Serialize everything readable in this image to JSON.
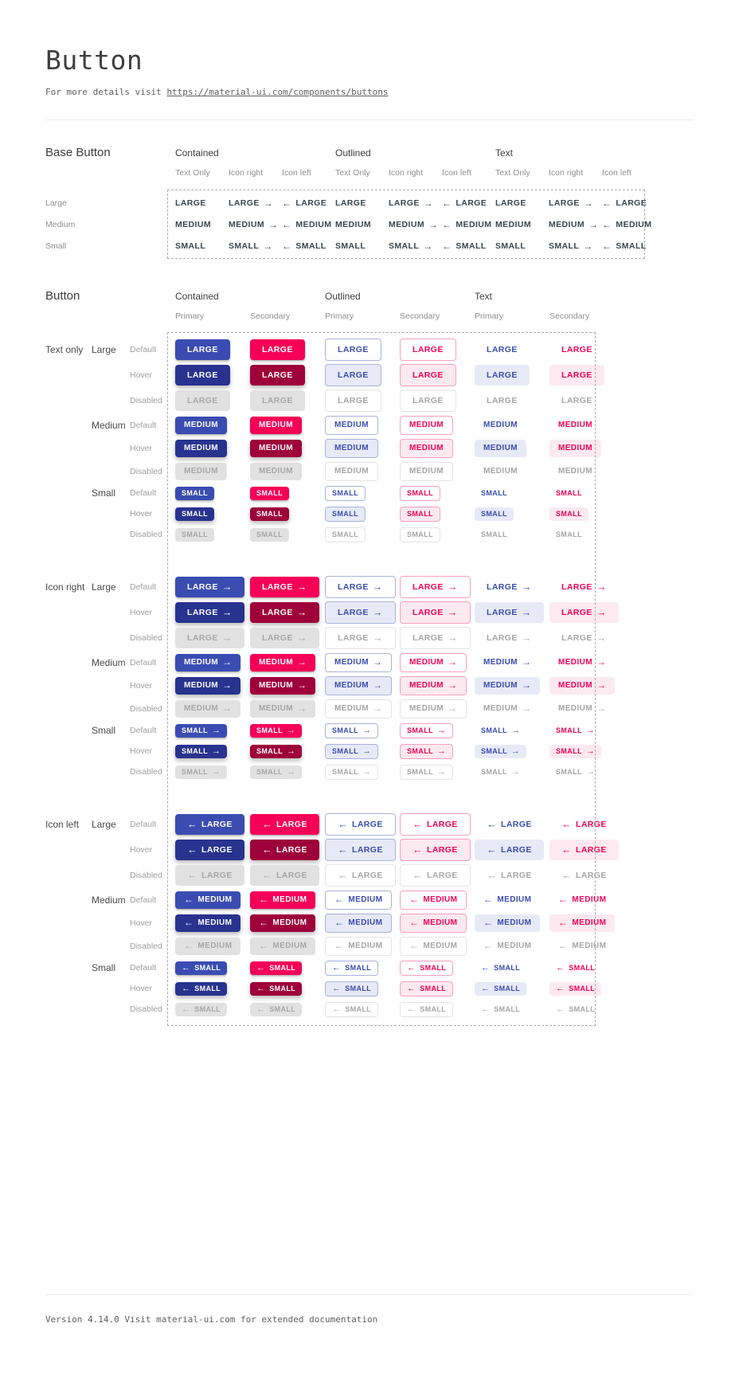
{
  "header": {
    "title": "Button",
    "subtitle_prefix": "For more details visit ",
    "subtitle_link": "https://material-ui.com/components/buttons"
  },
  "colors": {
    "primary": "#3a4cb2",
    "primary_hover": "#27338f",
    "secondary": "#f50057",
    "secondary_hover": "#9e0039",
    "primary_light_bg": "#e7eaf6",
    "secondary_light_bg": "#fde9f0",
    "disabled_bg": "#e1e1e1",
    "disabled_text": "#a6a6a6",
    "outlined_primary_border": "#aab2dd",
    "outlined_secondary_border": "#f8a0bf",
    "outlined_disabled_border": "#e4e4e4",
    "base_text": "#37474f"
  },
  "icons": {
    "arrow_right": "→",
    "arrow_left": "←"
  },
  "base_section": {
    "title": "Base Button",
    "groups": [
      "Contained",
      "Outlined",
      "Text"
    ],
    "subcolumns": [
      "Text Only",
      "Icon right",
      "Icon left"
    ],
    "variants": [
      "text-only",
      "icon-right",
      "icon-left"
    ],
    "rows": [
      {
        "label": "Large",
        "button_text": "LARGE"
      },
      {
        "label": "Medium",
        "button_text": "MEDIUM"
      },
      {
        "label": "Small",
        "button_text": "SMALL"
      }
    ]
  },
  "button_section": {
    "title": "Button",
    "groups": [
      "Contained",
      "Outlined",
      "Text"
    ],
    "subcolumns": [
      "Primary",
      "Secondary"
    ],
    "icon_groups": [
      {
        "label": "Text only",
        "icon": "none"
      },
      {
        "label": "Icon right",
        "icon": "right"
      },
      {
        "label": "Icon left",
        "icon": "left"
      }
    ],
    "sizes": [
      {
        "label": "Large",
        "button_text": "LARGE"
      },
      {
        "label": "Medium",
        "button_text": "MEDIUM"
      },
      {
        "label": "Small",
        "button_text": "SMALL"
      }
    ],
    "states": [
      "Default",
      "Hover",
      "Disabled"
    ]
  },
  "footer": {
    "text": "Version 4.14.0  Visit material-ui.com for extended documentation"
  }
}
